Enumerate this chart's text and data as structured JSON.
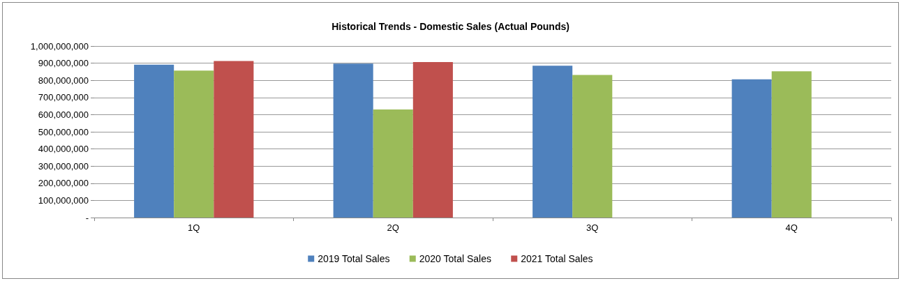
{
  "chart_data": {
    "type": "bar",
    "title": "Historical Trends - Domestic Sales (Actual Pounds)",
    "categories": [
      "1Q",
      "2Q",
      "3Q",
      "4Q"
    ],
    "series": [
      {
        "name": "2019 Total Sales",
        "color": "#4f81bd",
        "values": [
          891000000,
          897000000,
          885000000,
          806000000
        ]
      },
      {
        "name": "2020 Total Sales",
        "color": "#9bbb59",
        "values": [
          857000000,
          630000000,
          831000000,
          853000000
        ]
      },
      {
        "name": "2021 Total Sales",
        "color": "#c0504d",
        "values": [
          913000000,
          906000000,
          null,
          null
        ]
      }
    ],
    "ylim": [
      0,
      1000000000
    ],
    "yticks": [
      {
        "value": 0,
        "label": "-"
      },
      {
        "value": 100000000,
        "label": "100,000,000"
      },
      {
        "value": 200000000,
        "label": "200,000,000"
      },
      {
        "value": 300000000,
        "label": "300,000,000"
      },
      {
        "value": 400000000,
        "label": "400,000,000"
      },
      {
        "value": 500000000,
        "label": "500,000,000"
      },
      {
        "value": 600000000,
        "label": "600,000,000"
      },
      {
        "value": 700000000,
        "label": "700,000,000"
      },
      {
        "value": 800000000,
        "label": "800,000,000"
      },
      {
        "value": 900000000,
        "label": "900,000,000"
      },
      {
        "value": 1000000000,
        "label": "1,000,000,000"
      }
    ],
    "grid": "y",
    "legend": "bottom"
  }
}
